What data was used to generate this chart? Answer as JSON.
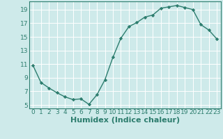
{
  "x": [
    0,
    1,
    2,
    3,
    4,
    5,
    6,
    7,
    8,
    9,
    10,
    11,
    12,
    13,
    14,
    15,
    16,
    17,
    18,
    19,
    20,
    21,
    22,
    23
  ],
  "y": [
    10.8,
    8.3,
    7.5,
    6.8,
    6.2,
    5.8,
    5.9,
    5.1,
    6.5,
    8.7,
    12.0,
    14.8,
    16.5,
    17.1,
    17.9,
    18.2,
    19.2,
    19.4,
    19.6,
    19.3,
    19.0,
    16.8,
    16.0,
    14.7
  ],
  "xlabel": "Humidex (Indice chaleur)",
  "ylim": [
    4.5,
    20.2
  ],
  "xlim": [
    -0.5,
    23.5
  ],
  "yticks": [
    5,
    7,
    9,
    11,
    13,
    15,
    17,
    19
  ],
  "xticks": [
    0,
    1,
    2,
    3,
    4,
    5,
    6,
    7,
    8,
    9,
    10,
    11,
    12,
    13,
    14,
    15,
    16,
    17,
    18,
    19,
    20,
    21,
    22,
    23
  ],
  "line_color": "#2d7d6e",
  "marker": "D",
  "marker_size": 2.2,
  "bg_color": "#ceeaea",
  "grid_color": "#ffffff",
  "tick_color": "#2d7d6e",
  "xlabel_fontsize": 8,
  "tick_fontsize": 6.5,
  "linewidth": 1.0
}
